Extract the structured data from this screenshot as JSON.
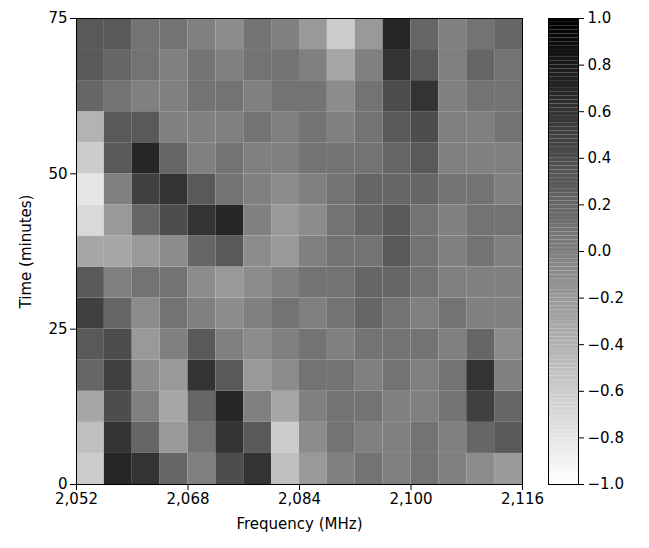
{
  "chart_data": {
    "type": "heatmap",
    "x_label": "Frequency (MHz)",
    "y_label": "Time (minutes)",
    "xlim": [
      2052,
      2116
    ],
    "xticks": [
      2052,
      2068,
      2084,
      2100,
      2116
    ],
    "ylim": [
      0,
      75
    ],
    "yticks": [
      0,
      25,
      50,
      75
    ],
    "x_edges": [
      2052,
      2056,
      2060,
      2064,
      2068,
      2072,
      2076,
      2080,
      2084,
      2088,
      2092,
      2096,
      2100,
      2104,
      2108,
      2112,
      2116
    ],
    "y_edges": [
      0,
      5,
      10,
      15,
      20,
      25,
      30,
      35,
      40,
      45,
      50,
      55,
      60,
      65,
      70,
      75
    ],
    "cells": [
      [
        -0.6,
        0.7,
        0.6,
        0.2,
        0.0,
        0.4,
        0.6,
        -0.5,
        -0.2,
        0.0,
        0.1,
        0.0,
        0.1,
        0.0,
        -0.1,
        -0.2
      ],
      [
        -0.5,
        0.6,
        0.2,
        -0.2,
        0.1,
        0.6,
        0.3,
        -0.6,
        -0.1,
        0.1,
        0.0,
        0.0,
        0.1,
        0.0,
        0.2,
        0.3
      ],
      [
        -0.3,
        0.4,
        0.0,
        -0.3,
        0.2,
        0.7,
        0.0,
        -0.3,
        0.0,
        0.1,
        0.1,
        0.0,
        0.0,
        0.1,
        0.5,
        0.2
      ],
      [
        0.2,
        0.5,
        -0.1,
        -0.2,
        0.6,
        0.3,
        -0.2,
        -0.1,
        0.1,
        0.1,
        0.0,
        0.1,
        0.0,
        0.1,
        0.6,
        0.0
      ],
      [
        0.3,
        0.4,
        -0.2,
        0.0,
        0.3,
        0.0,
        -0.1,
        0.0,
        0.1,
        0.0,
        0.1,
        0.1,
        0.1,
        0.0,
        0.2,
        -0.1
      ],
      [
        0.5,
        0.2,
        -0.1,
        0.1,
        0.0,
        -0.1,
        0.0,
        0.1,
        0.0,
        0.1,
        0.2,
        0.1,
        0.0,
        0.1,
        0.0,
        0.0
      ],
      [
        0.3,
        0.0,
        0.1,
        0.1,
        -0.1,
        -0.2,
        -0.1,
        0.0,
        0.1,
        0.1,
        0.2,
        0.2,
        0.1,
        0.0,
        0.0,
        0.0
      ],
      [
        -0.3,
        -0.3,
        -0.2,
        -0.1,
        0.2,
        0.3,
        -0.1,
        -0.2,
        0.0,
        0.1,
        0.1,
        0.3,
        0.1,
        0.0,
        0.1,
        0.0
      ],
      [
        -0.7,
        -0.2,
        0.2,
        0.4,
        0.6,
        0.7,
        0.0,
        -0.2,
        -0.1,
        0.1,
        0.2,
        0.3,
        0.1,
        0.0,
        0.1,
        0.1
      ],
      [
        -0.8,
        0.0,
        0.5,
        0.6,
        0.3,
        0.1,
        0.0,
        -0.1,
        0.0,
        0.1,
        0.2,
        0.2,
        0.2,
        0.1,
        0.1,
        0.0
      ],
      [
        -0.6,
        0.3,
        0.7,
        0.2,
        0.0,
        0.1,
        0.0,
        0.0,
        0.1,
        0.1,
        0.1,
        0.2,
        0.3,
        0.0,
        0.0,
        0.0
      ],
      [
        -0.4,
        0.3,
        0.3,
        0.0,
        0.0,
        0.0,
        0.1,
        0.0,
        0.1,
        0.0,
        0.1,
        0.3,
        0.4,
        0.0,
        0.0,
        0.1
      ],
      [
        0.2,
        0.1,
        0.0,
        0.0,
        0.1,
        0.1,
        0.0,
        0.1,
        0.1,
        -0.1,
        0.1,
        0.4,
        0.6,
        0.0,
        0.1,
        0.1
      ],
      [
        0.3,
        0.2,
        0.1,
        0.0,
        0.1,
        0.0,
        0.1,
        0.1,
        0.0,
        -0.3,
        0.0,
        0.6,
        0.3,
        0.0,
        0.2,
        0.1
      ],
      [
        0.3,
        0.3,
        0.1,
        0.1,
        0.0,
        -0.1,
        0.1,
        0.0,
        -0.2,
        -0.6,
        -0.2,
        0.7,
        0.2,
        0.0,
        0.1,
        0.2
      ]
    ],
    "colorbar": {
      "range": [
        -1,
        1
      ],
      "ticks": [
        -1,
        -0.8,
        -0.6,
        -0.4,
        -0.2,
        0,
        0.2,
        0.4,
        0.6,
        0.8,
        1
      ]
    }
  }
}
